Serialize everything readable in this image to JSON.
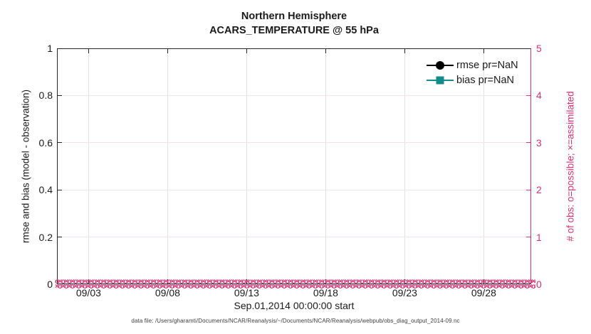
{
  "figure": {
    "title_line1": "Northern Hemisphere",
    "title_line2": "ACARS_TEMPERATURE @ 55 hPa",
    "xlabel": "Sep.01,2014 00:00:00 start",
    "ylabel_left": "rmse and bias (model - observation)",
    "ylabel_right": "# of obs: o=possible; ×=assimilated",
    "caption": "data file: /Users/gharamti/Documents/NCAR/Reanalysis/~/Documents/NCAR/Reanalysis/webpub/obs_diag_output_2014-09.nc"
  },
  "legend": {
    "items": [
      {
        "label": "rmse pr=NaN",
        "marker": "filled-circle",
        "color": "#000000"
      },
      {
        "label": "bias pr=NaN",
        "marker": "filled-square",
        "color": "#108c8c"
      }
    ]
  },
  "colors": {
    "axis_dark": "#262626",
    "text_dark": "#1a1a1a",
    "pink_accent": "#de3173",
    "teal_accent": "#108c8c",
    "grid_vertical": "#e7dfe4",
    "grid_horizontal": "#f8e0ec"
  },
  "chart_data": {
    "type": "line",
    "title": "Northern Hemisphere",
    "subtitle": "ACARS_TEMPERATURE @ 55 hPa",
    "xlabel": "Sep.01,2014 00:00:00 start",
    "x_axis": {
      "start": "Sep.01,2014 00:00:00",
      "range_days": [
        0,
        30
      ],
      "tick_days": [
        2,
        7,
        12,
        17,
        22,
        27
      ],
      "tick_labels": [
        "09/03",
        "09/08",
        "09/13",
        "09/18",
        "09/23",
        "09/28"
      ]
    },
    "y_axis_left": {
      "label": "rmse and bias (model - observation)",
      "lim": [
        0,
        1
      ],
      "ticks": [
        0,
        0.2,
        0.4,
        0.6,
        0.8,
        1
      ],
      "tick_labels": [
        "0",
        "0.2",
        "0.4",
        "0.6",
        "0.8",
        "1"
      ],
      "color": "#1a1a1a"
    },
    "y_axis_right": {
      "label": "# of obs: o=possible; ×=assimilated",
      "lim": [
        0,
        5
      ],
      "ticks": [
        0,
        1,
        2,
        3,
        4,
        5
      ],
      "tick_labels": [
        "0",
        "1",
        "2",
        "3",
        "4",
        "5"
      ],
      "color": "#de3173"
    },
    "grid": true,
    "legend_position": "top-right-inside",
    "legend_box": false,
    "series": [
      {
        "name": "rmse pr=NaN",
        "axis": "left",
        "marker": "filled-circle",
        "color": "#000000",
        "values": "NaN",
        "note": "no curve plotted (all NaN)"
      },
      {
        "name": "bias pr=NaN",
        "axis": "left",
        "marker": "filled-square",
        "color": "#108c8c",
        "values": "NaN",
        "note": "no curve plotted (all NaN)"
      },
      {
        "name": "# of obs possible",
        "axis": "right",
        "marker": "o",
        "color": "#de3173",
        "constant_value": 0,
        "note": "dense o markers at y=0 across Sep.01–Oct.01"
      },
      {
        "name": "# of obs assimilated",
        "axis": "right",
        "marker": "×",
        "color": "#de3173",
        "constant_value": 0,
        "note": "dense × markers at y=0 across Sep.01–Oct.01"
      }
    ]
  }
}
